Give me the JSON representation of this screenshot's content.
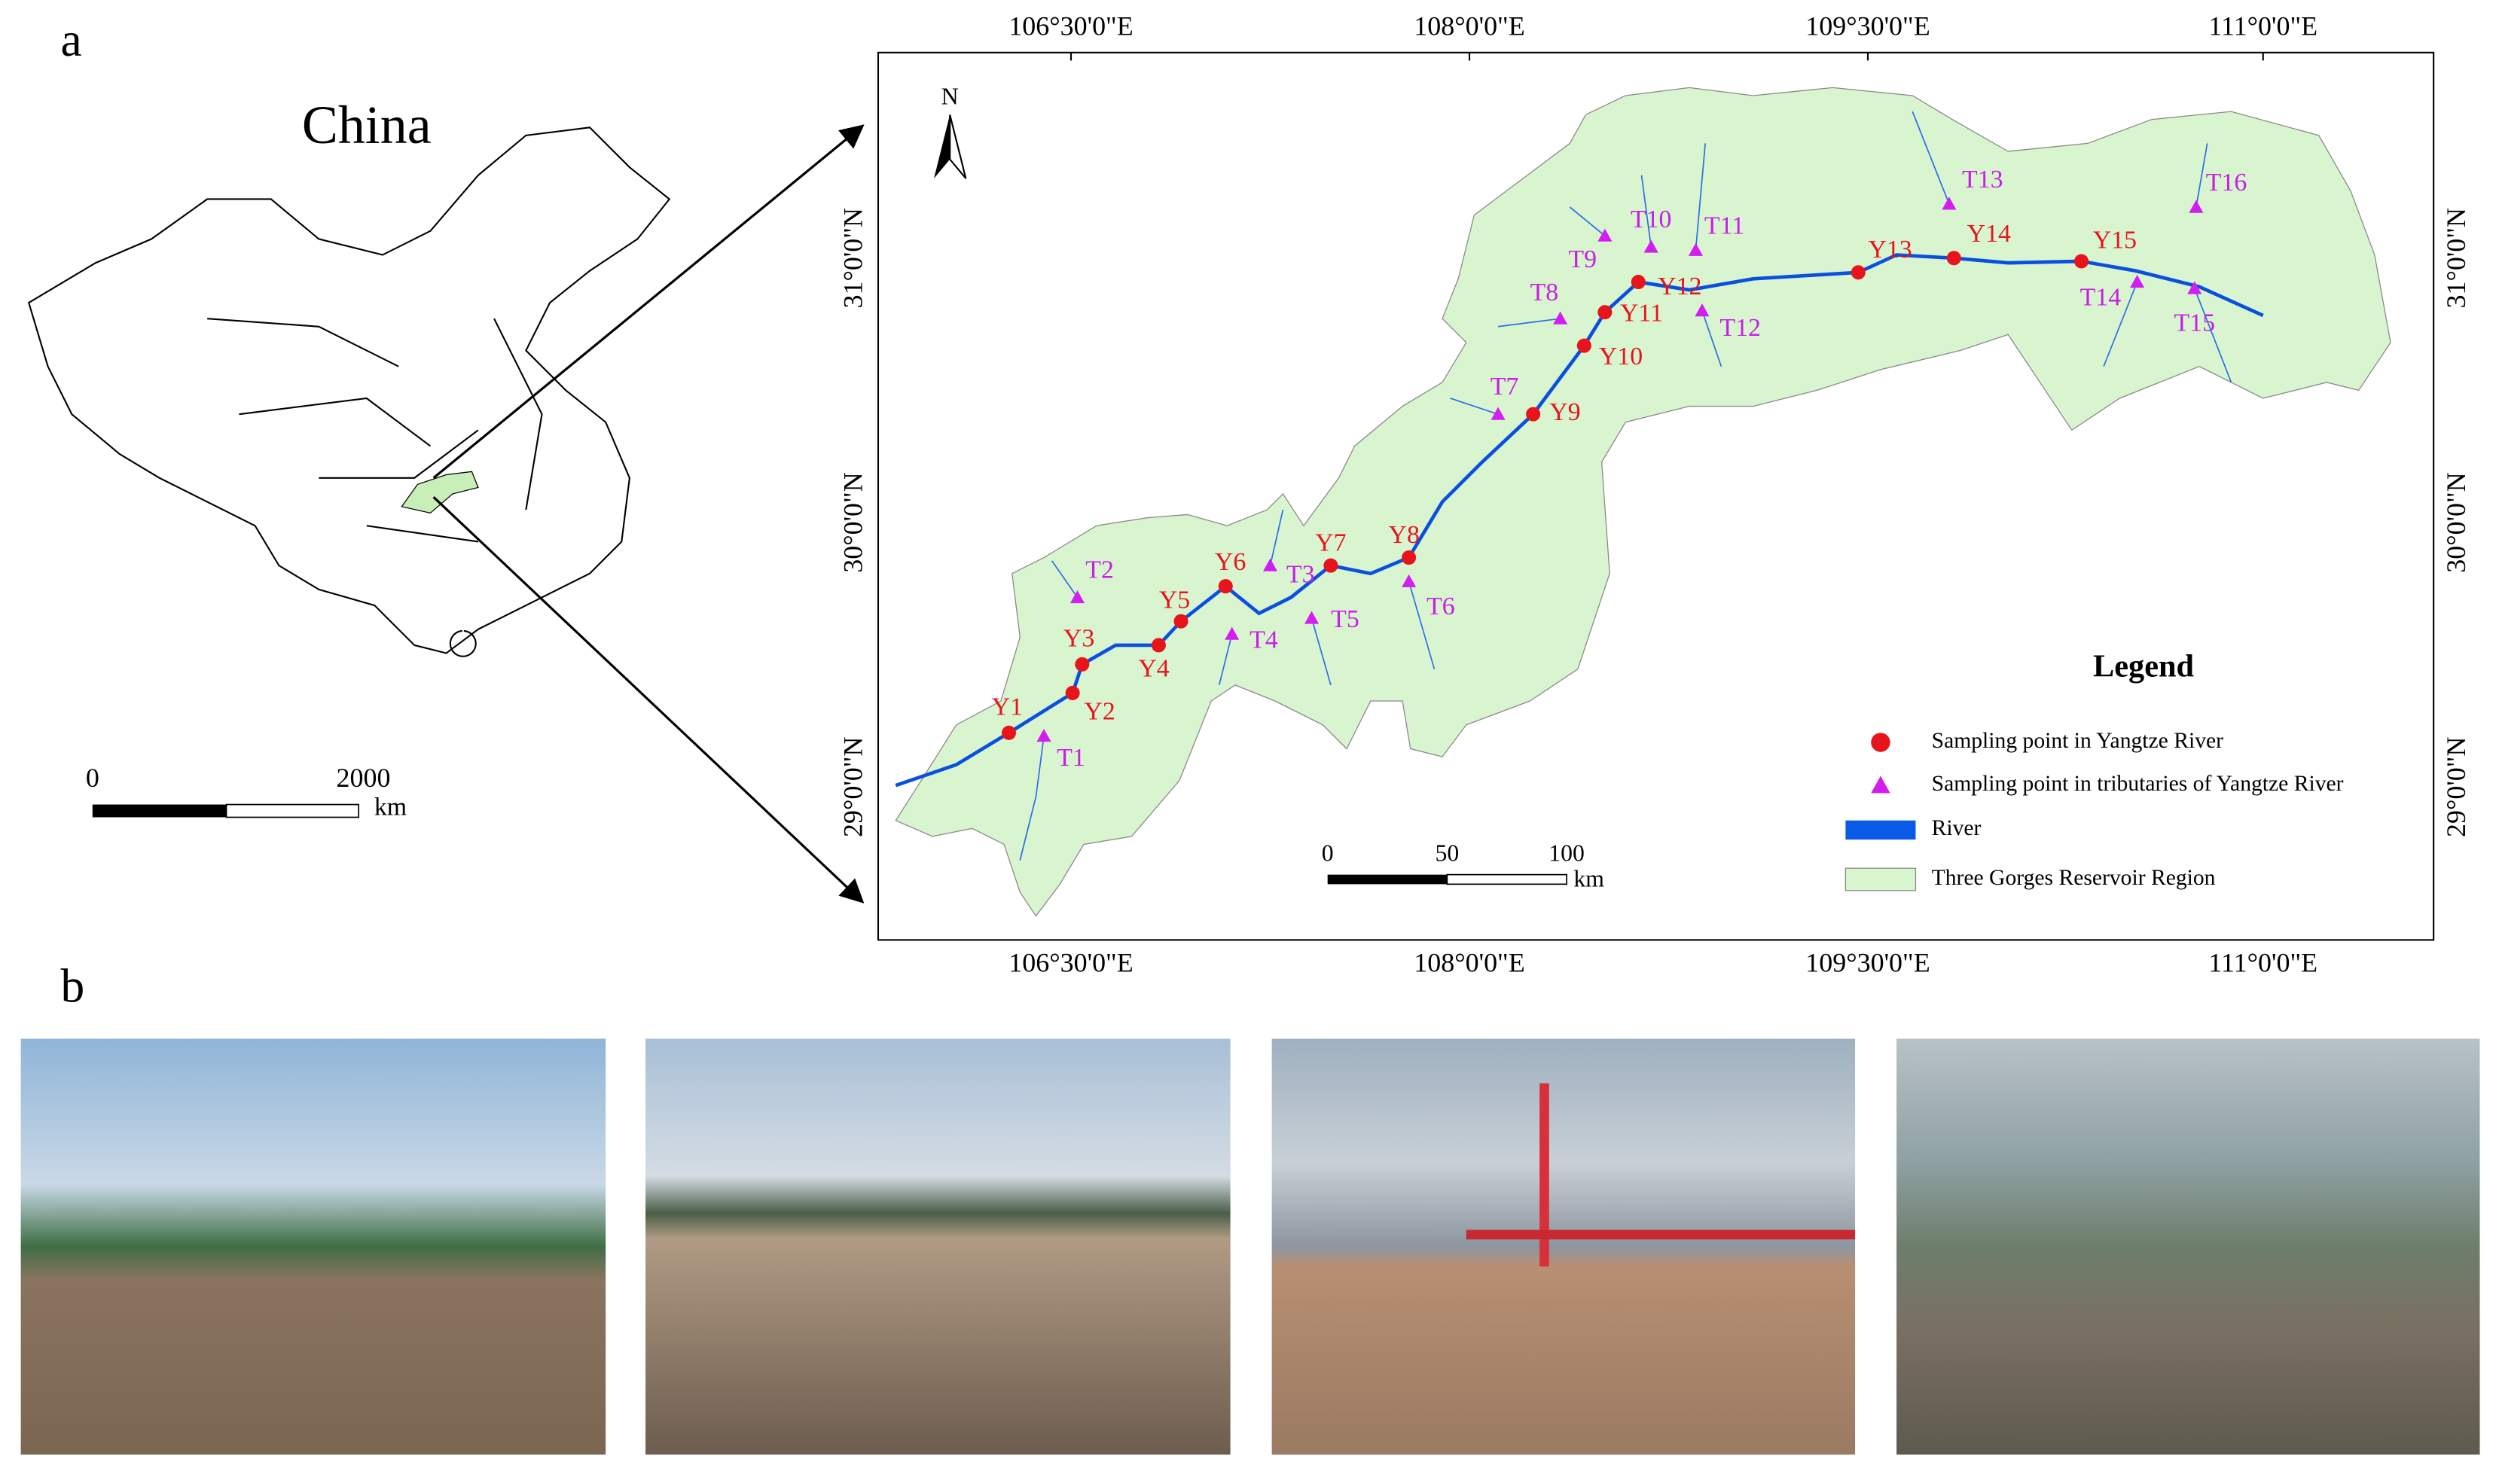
{
  "panel_a": {
    "label": "a",
    "china": {
      "title": "China",
      "scale": {
        "labels": [
          "0",
          "2000"
        ],
        "unit": "km"
      }
    },
    "map": {
      "north": "N",
      "lon_labels": [
        "106°30'0\"E",
        "108°0'0\"E",
        "109°30'0\"E",
        "111°0'0\"E"
      ],
      "lat_labels": [
        "31°0'0\"N",
        "30°0'0\"N",
        "29°0'0\"N"
      ],
      "yangtze_points": [
        "Y1",
        "Y2",
        "Y3",
        "Y4",
        "Y5",
        "Y6",
        "Y7",
        "Y8",
        "Y9",
        "Y10",
        "Y11",
        "Y12",
        "Y13",
        "Y14",
        "Y15"
      ],
      "tributary_points": [
        "T1",
        "T2",
        "T3",
        "T4",
        "T5",
        "T6",
        "T7",
        "T8",
        "T9",
        "T10",
        "T11",
        "T12",
        "T13",
        "T14",
        "T15",
        "T16"
      ],
      "scale": {
        "labels": [
          "0",
          "50",
          "100"
        ],
        "unit": "km"
      },
      "legend": {
        "title": "Legend",
        "items": [
          "Sampling point in Yangtze River",
          "Sampling point in tributaries of Yangtze River",
          "River",
          "Three Gorges Reservoir Region"
        ]
      }
    }
  },
  "panel_b": {
    "label": "b"
  }
}
